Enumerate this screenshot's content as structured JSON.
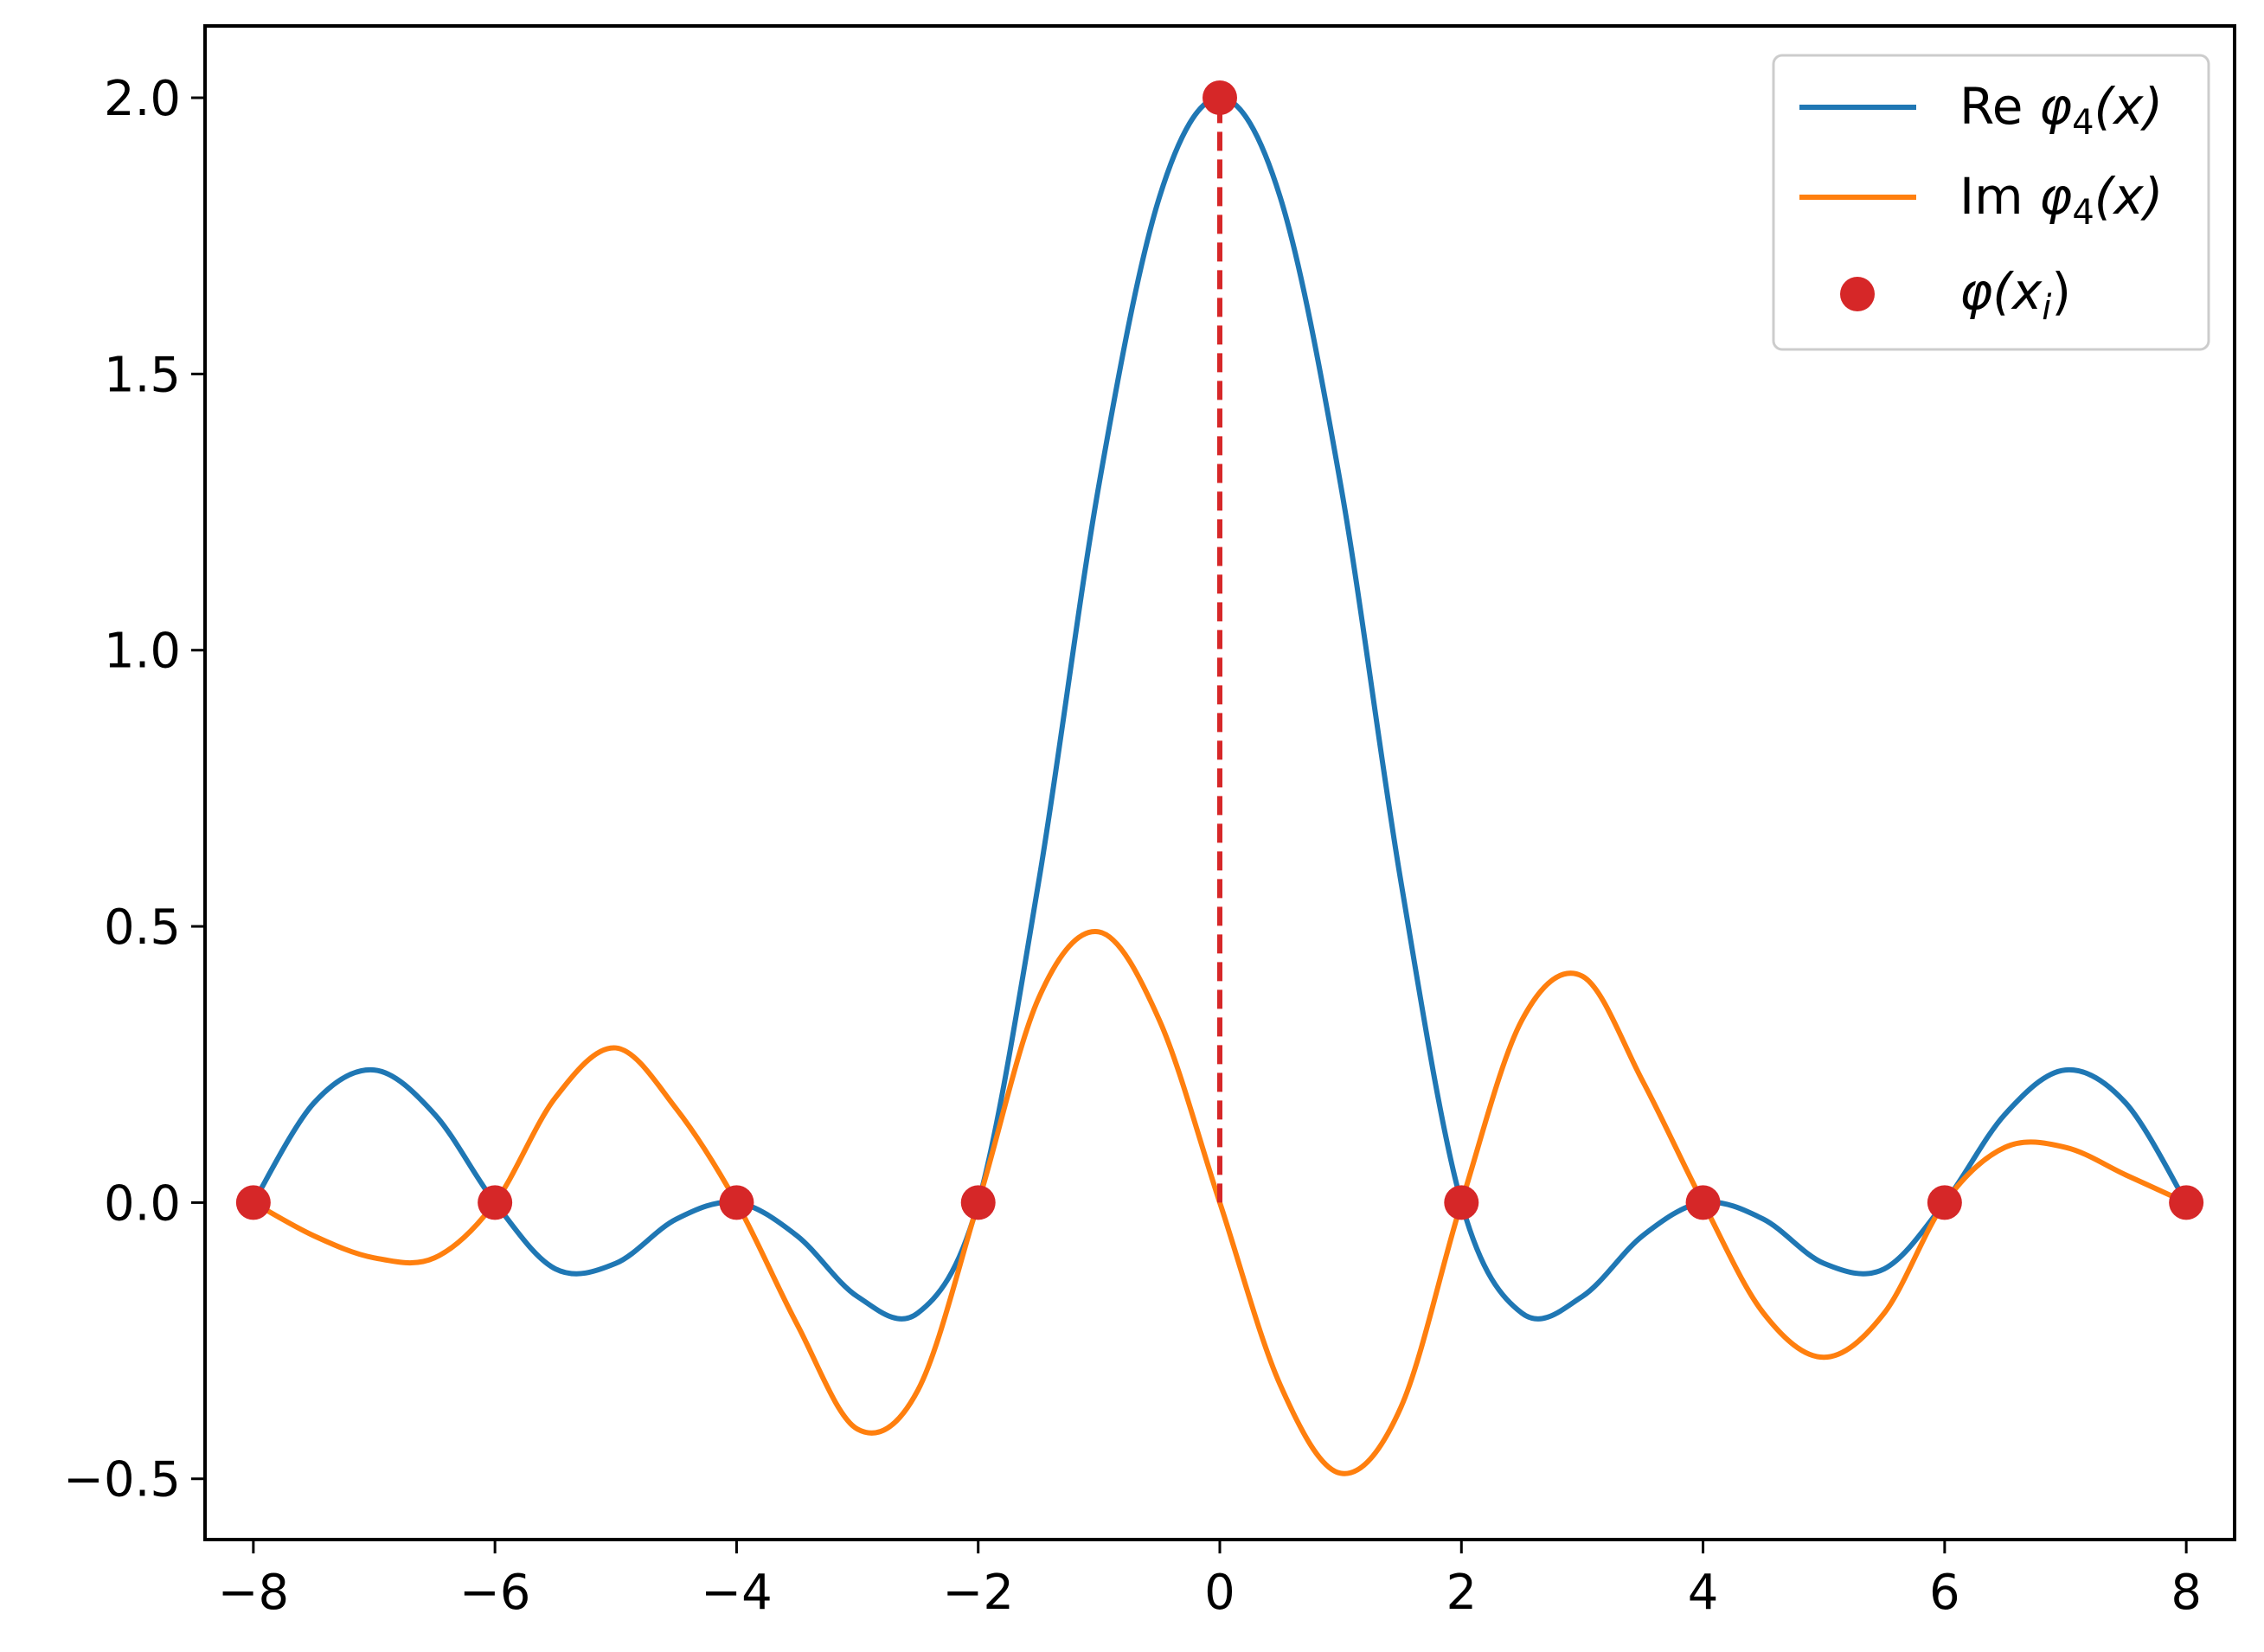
{
  "chart_data": {
    "type": "line",
    "title": "",
    "xlabel": "",
    "ylabel": "",
    "xlim": [
      -8.4,
      8.4
    ],
    "ylim": [
      -0.61,
      2.13
    ],
    "x_ticks": [
      -8,
      -6,
      -4,
      -2,
      0,
      2,
      4,
      6,
      8
    ],
    "x_tick_labels": [
      "−8",
      "−6",
      "−4",
      "−2",
      "0",
      "2",
      "4",
      "6",
      "8"
    ],
    "y_ticks": [
      -0.5,
      0.0,
      0.5,
      1.0,
      1.5,
      2.0
    ],
    "y_tick_labels": [
      "−0.5",
      "0.0",
      "0.5",
      "1.0",
      "1.5",
      "2.0"
    ],
    "grid": false,
    "legend_position": "top-right",
    "series": [
      {
        "name": "Re φ4(x)",
        "kind": "line",
        "color": "#1f77b4",
        "x": [
          -8,
          -7.5,
          -7,
          -6.5,
          -6,
          -5.5,
          -5,
          -4.5,
          -4,
          -3.5,
          -3,
          -2.5,
          -2,
          -1.5,
          -1,
          -0.5,
          0,
          0.5,
          1,
          1.5,
          2,
          2.5,
          3,
          3.5,
          4,
          4.5,
          5,
          5.5,
          6,
          6.5,
          7,
          7.5,
          8
        ],
        "values": [
          0.0,
          0.18,
          0.24,
          0.16,
          0.0,
          -0.12,
          -0.11,
          -0.03,
          0.0,
          -0.06,
          -0.17,
          -0.2,
          0.0,
          0.58,
          1.3,
          1.82,
          2.0,
          1.82,
          1.3,
          0.58,
          0.0,
          -0.2,
          -0.17,
          -0.06,
          0.0,
          -0.03,
          -0.11,
          -0.12,
          0.0,
          0.16,
          0.24,
          0.18,
          0.0
        ]
      },
      {
        "name": "Im φ4(x)",
        "kind": "line",
        "color": "#ff7f0e",
        "x": [
          -8,
          -7.5,
          -7,
          -6.5,
          -6,
          -5.5,
          -5,
          -4.5,
          -4,
          -3.5,
          -3,
          -2.5,
          -2,
          -1.5,
          -1,
          -0.5,
          0,
          0.5,
          1,
          1.5,
          2,
          2.5,
          3,
          3.5,
          4,
          4.5,
          5,
          5.5,
          6,
          6.5,
          7,
          7.5,
          8
        ],
        "values": [
          0.0,
          -0.06,
          -0.1,
          -0.1,
          0.0,
          0.19,
          0.28,
          0.17,
          0.0,
          -0.22,
          -0.41,
          -0.34,
          0.0,
          0.37,
          0.49,
          0.33,
          0.0,
          -0.33,
          -0.49,
          -0.37,
          0.0,
          0.33,
          0.41,
          0.22,
          0.0,
          -0.2,
          -0.28,
          -0.2,
          0.0,
          0.1,
          0.1,
          0.05,
          0.0
        ]
      },
      {
        "name": "φ(xi)",
        "kind": "scatter",
        "color": "#d62728",
        "x": [
          -8,
          -6,
          -4,
          -2,
          0,
          2,
          4,
          6,
          8
        ],
        "values": [
          0,
          0,
          0,
          0,
          2,
          0,
          0,
          0,
          0
        ]
      }
    ],
    "annotations": [
      {
        "kind": "dashed-vertical-line",
        "color": "#d62728",
        "x": 0,
        "y_from": 0,
        "y_to": 2
      }
    ]
  },
  "legend": {
    "entries": [
      {
        "prefix": "Re ",
        "symbol": "φ",
        "sub": "4",
        "rest": "(x)"
      },
      {
        "prefix": "Im ",
        "symbol": "φ",
        "sub": "4",
        "rest": "(x)"
      },
      {
        "prefix": "",
        "symbol": "φ",
        "sub": "",
        "rest": "(x",
        "rest_sub": "i",
        "close": ")"
      }
    ]
  }
}
